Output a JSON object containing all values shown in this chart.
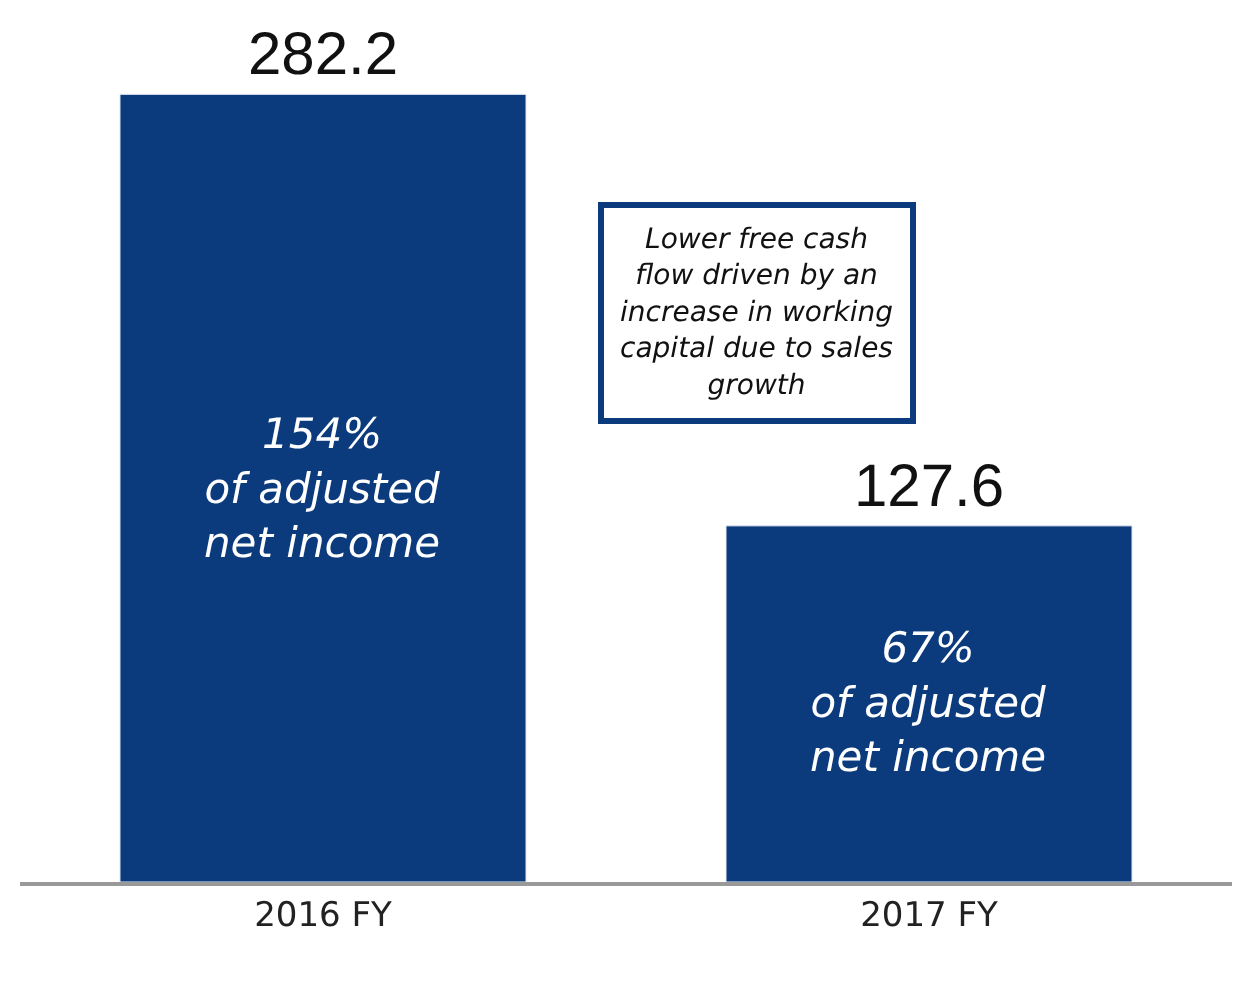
{
  "chart_data": {
    "type": "bar",
    "categories": [
      "2016 FY",
      "2017 FY"
    ],
    "values": [
      282.2,
      127.6
    ],
    "color": "#0b3b7c",
    "data_labels": true,
    "ylim": [
      0,
      316
    ],
    "tick_labels": "x",
    "annotations": [
      "154%\nof adjusted\nnet income",
      "67%\nof adjusted\nnet income",
      "Lower free cash\nflow driven by an\nincrease in working\ncapital due to sales\ngrowth"
    ]
  }
}
